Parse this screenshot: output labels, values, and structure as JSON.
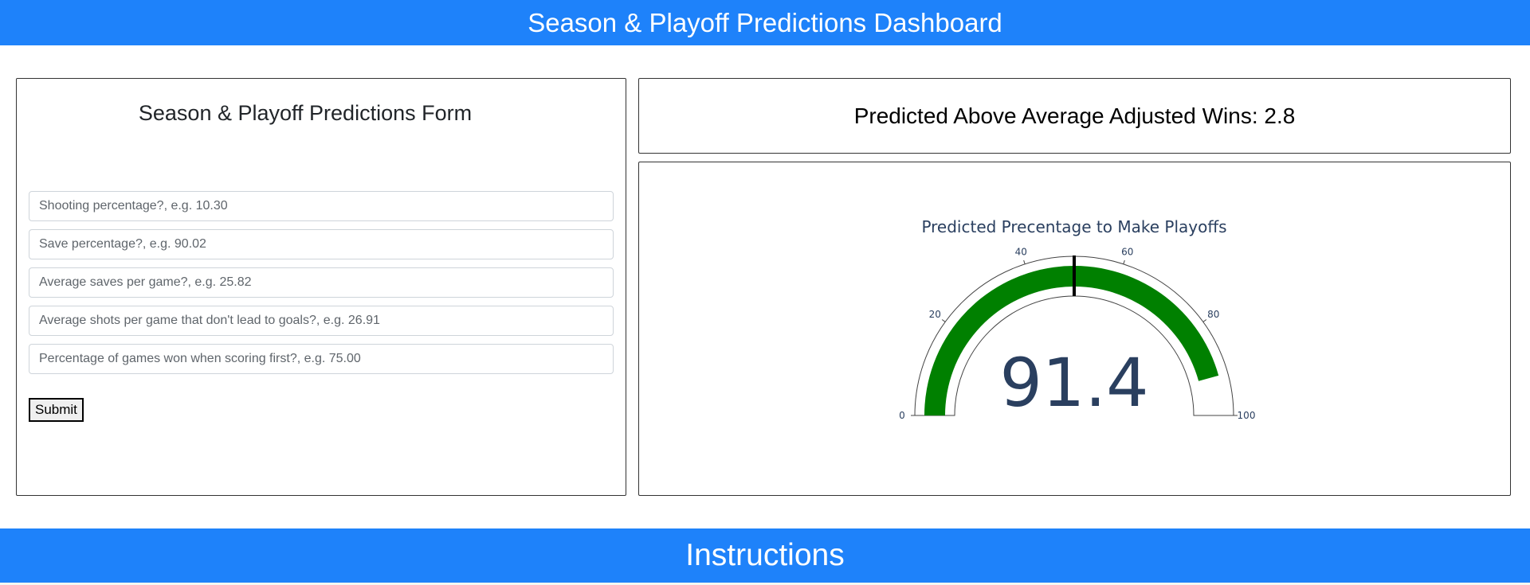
{
  "header": {
    "title": "Season & Playoff Predictions Dashboard"
  },
  "form": {
    "title": "Season & Playoff Predictions Form",
    "inputs": [
      {
        "placeholder": "Shooting percentage?, e.g. 10.30",
        "value": ""
      },
      {
        "placeholder": "Save percentage?, e.g. 90.02",
        "value": ""
      },
      {
        "placeholder": "Average saves per game?, e.g. 25.82",
        "value": ""
      },
      {
        "placeholder": "Average shots per game that don't lead to goals?, e.g. 26.91",
        "value": ""
      },
      {
        "placeholder": "Percentage of games won when scoring first?, e.g. 75.00",
        "value": ""
      }
    ],
    "submit_label": "Submit"
  },
  "wins": {
    "text": "Predicted Above Average Adjusted Wins: 2.8"
  },
  "gauge": {
    "title": "Predicted Precentage to Make Playoffs",
    "value": 91.4,
    "value_text": "91.4",
    "min": 0,
    "max": 100,
    "threshold": 50,
    "ticks": [
      "0",
      "20",
      "40",
      "60",
      "80",
      "100"
    ],
    "bar_color": "#008000",
    "threshold_color": "#000000",
    "number_color": "#2a3f5f"
  },
  "footer": {
    "title": "Instructions"
  }
}
